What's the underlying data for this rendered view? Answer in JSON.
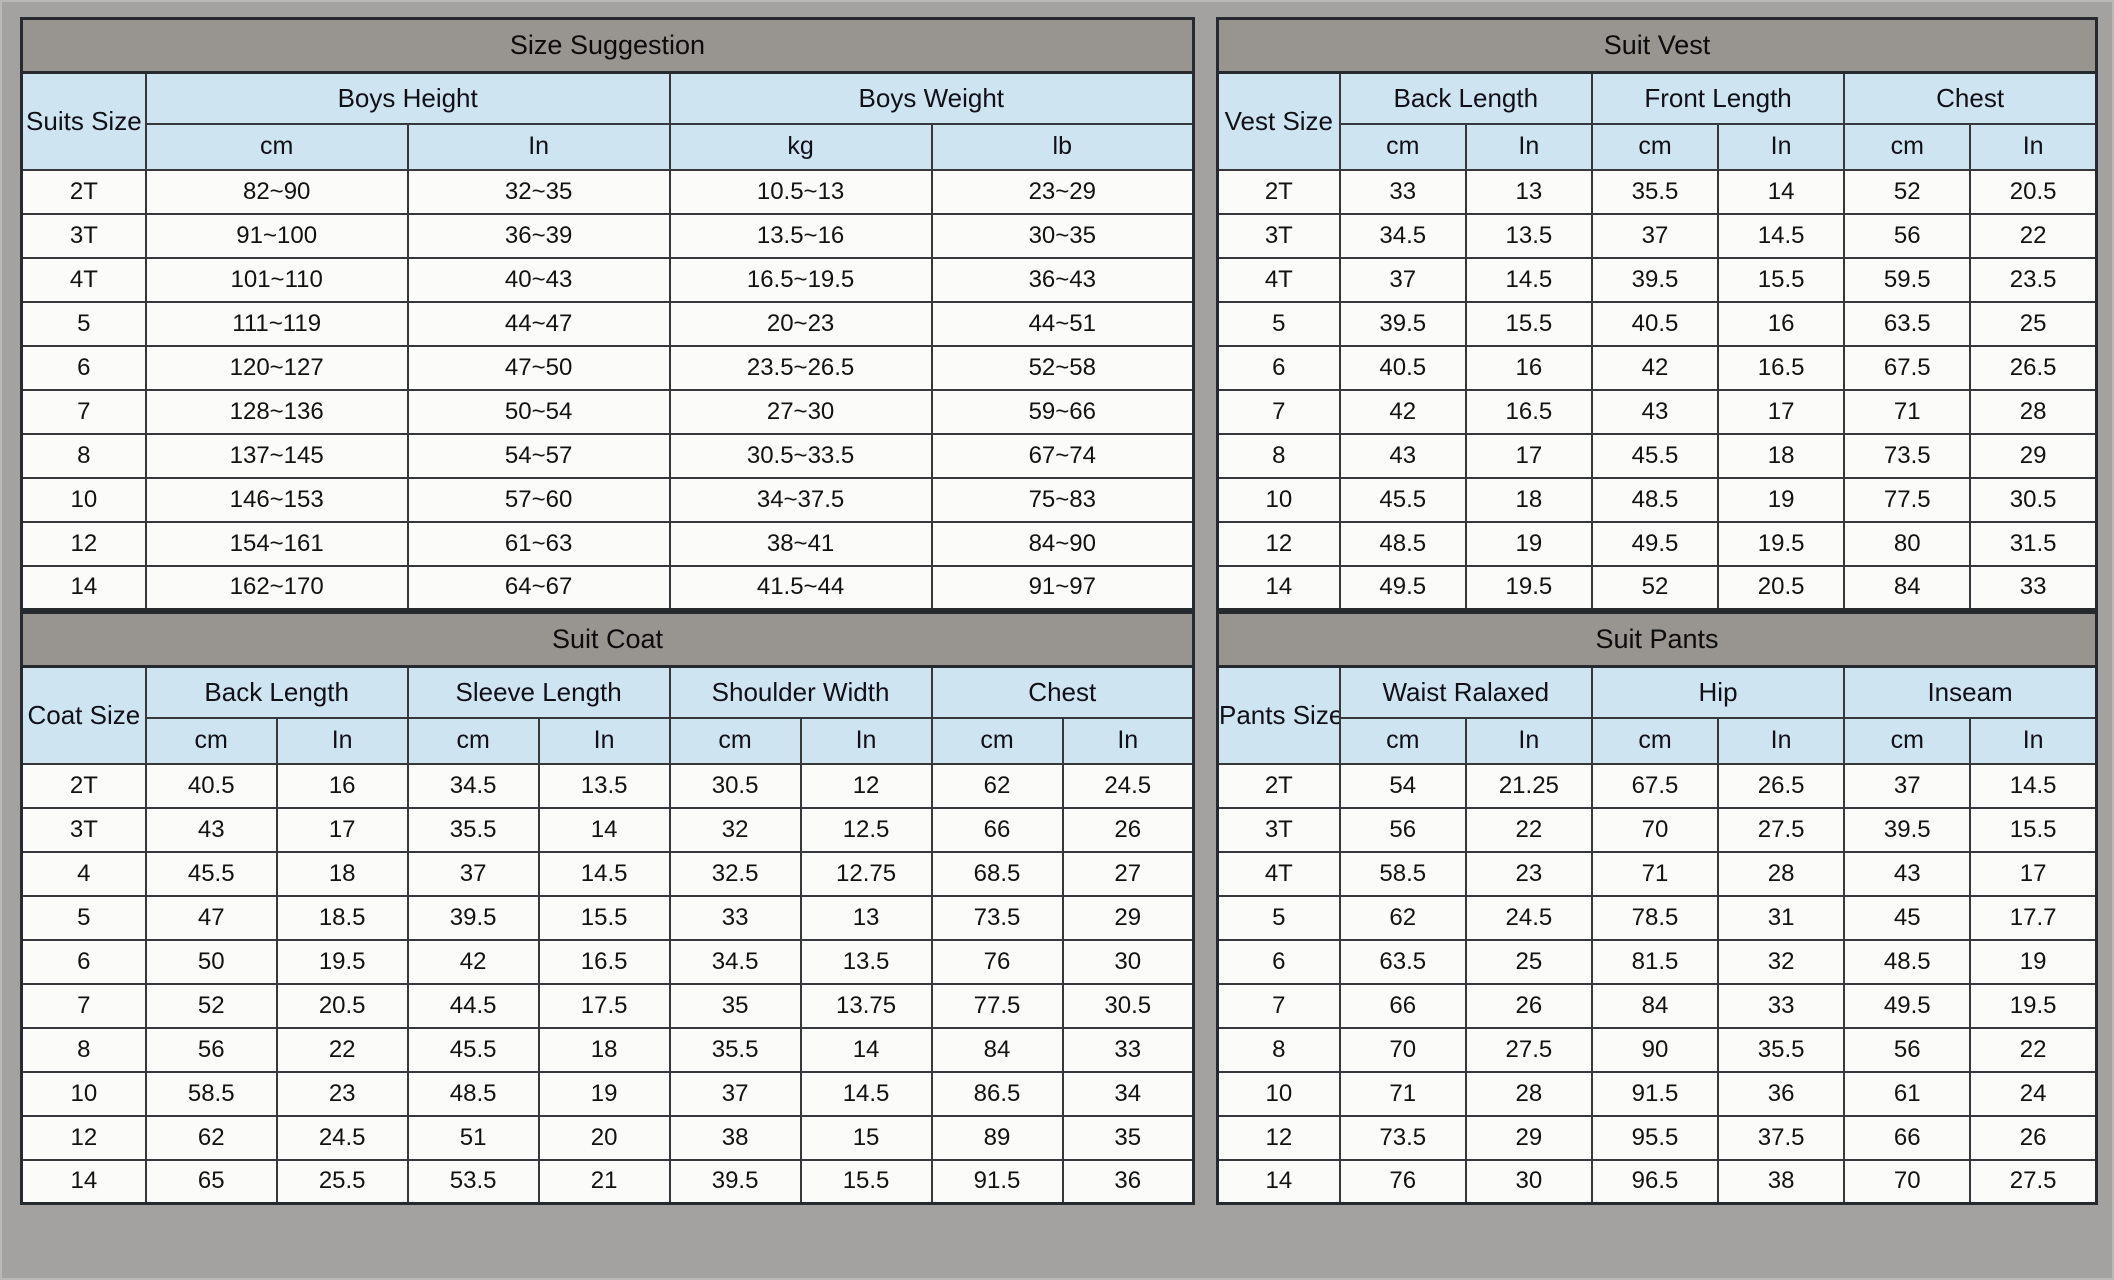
{
  "colors": {
    "board_background": "#a4a2a0",
    "title_bar": "#98948f",
    "header_blue": "#cfe4f1",
    "cell_white": "#fbfbfa",
    "border_dark": "#26292d"
  },
  "tables": [
    {
      "id": "size-suggestion",
      "title": "Size Suggestion",
      "size_column_label": "Suits Size",
      "size_col_width": "10.6%",
      "groups": [
        {
          "label": "Boys Height",
          "units": [
            "cm",
            "In"
          ]
        },
        {
          "label": "Boys Weight",
          "units": [
            "kg",
            "lb"
          ]
        }
      ],
      "rows": [
        {
          "size": "2T",
          "values": [
            "82~90",
            "32~35",
            "10.5~13",
            "23~29"
          ]
        },
        {
          "size": "3T",
          "values": [
            "91~100",
            "36~39",
            "13.5~16",
            "30~35"
          ]
        },
        {
          "size": "4T",
          "values": [
            "101~110",
            "40~43",
            "16.5~19.5",
            "36~43"
          ]
        },
        {
          "size": "5",
          "values": [
            "111~119",
            "44~47",
            "20~23",
            "44~51"
          ]
        },
        {
          "size": "6",
          "values": [
            "120~127",
            "47~50",
            "23.5~26.5",
            "52~58"
          ]
        },
        {
          "size": "7",
          "values": [
            "128~136",
            "50~54",
            "27~30",
            "59~66"
          ]
        },
        {
          "size": "8",
          "values": [
            "137~145",
            "54~57",
            "30.5~33.5",
            "67~74"
          ]
        },
        {
          "size": "10",
          "values": [
            "146~153",
            "57~60",
            "34~37.5",
            "75~83"
          ]
        },
        {
          "size": "12",
          "values": [
            "154~161",
            "61~63",
            "38~41",
            "84~90"
          ]
        },
        {
          "size": "14",
          "values": [
            "162~170",
            "64~67",
            "41.5~44",
            "91~97"
          ]
        }
      ]
    },
    {
      "id": "suit-vest",
      "title": "Suit Vest",
      "size_column_label": "Vest Size",
      "size_col_width": "13.9%",
      "groups": [
        {
          "label": "Back Length",
          "units": [
            "cm",
            "In"
          ]
        },
        {
          "label": "Front Length",
          "units": [
            "cm",
            "In"
          ]
        },
        {
          "label": "Chest",
          "units": [
            "cm",
            "In"
          ]
        }
      ],
      "rows": [
        {
          "size": "2T",
          "values": [
            "33",
            "13",
            "35.5",
            "14",
            "52",
            "20.5"
          ]
        },
        {
          "size": "3T",
          "values": [
            "34.5",
            "13.5",
            "37",
            "14.5",
            "56",
            "22"
          ]
        },
        {
          "size": "4T",
          "values": [
            "37",
            "14.5",
            "39.5",
            "15.5",
            "59.5",
            "23.5"
          ]
        },
        {
          "size": "5",
          "values": [
            "39.5",
            "15.5",
            "40.5",
            "16",
            "63.5",
            "25"
          ]
        },
        {
          "size": "6",
          "values": [
            "40.5",
            "16",
            "42",
            "16.5",
            "67.5",
            "26.5"
          ]
        },
        {
          "size": "7",
          "values": [
            "42",
            "16.5",
            "43",
            "17",
            "71",
            "28"
          ]
        },
        {
          "size": "8",
          "values": [
            "43",
            "17",
            "45.5",
            "18",
            "73.5",
            "29"
          ]
        },
        {
          "size": "10",
          "values": [
            "45.5",
            "18",
            "48.5",
            "19",
            "77.5",
            "30.5"
          ]
        },
        {
          "size": "12",
          "values": [
            "48.5",
            "19",
            "49.5",
            "19.5",
            "80",
            "31.5"
          ]
        },
        {
          "size": "14",
          "values": [
            "49.5",
            "19.5",
            "52",
            "20.5",
            "84",
            "33"
          ]
        }
      ]
    },
    {
      "id": "suit-coat",
      "title": "Suit Coat",
      "size_column_label": "Coat Size",
      "size_col_width": "10.6%",
      "groups": [
        {
          "label": "Back Length",
          "units": [
            "cm",
            "In"
          ]
        },
        {
          "label": "Sleeve Length",
          "units": [
            "cm",
            "In"
          ]
        },
        {
          "label": "Shoulder Width",
          "units": [
            "cm",
            "In"
          ]
        },
        {
          "label": "Chest",
          "units": [
            "cm",
            "In"
          ]
        }
      ],
      "rows": [
        {
          "size": "2T",
          "values": [
            "40.5",
            "16",
            "34.5",
            "13.5",
            "30.5",
            "12",
            "62",
            "24.5"
          ]
        },
        {
          "size": "3T",
          "values": [
            "43",
            "17",
            "35.5",
            "14",
            "32",
            "12.5",
            "66",
            "26"
          ]
        },
        {
          "size": "4",
          "values": [
            "45.5",
            "18",
            "37",
            "14.5",
            "32.5",
            "12.75",
            "68.5",
            "27"
          ]
        },
        {
          "size": "5",
          "values": [
            "47",
            "18.5",
            "39.5",
            "15.5",
            "33",
            "13",
            "73.5",
            "29"
          ]
        },
        {
          "size": "6",
          "values": [
            "50",
            "19.5",
            "42",
            "16.5",
            "34.5",
            "13.5",
            "76",
            "30"
          ]
        },
        {
          "size": "7",
          "values": [
            "52",
            "20.5",
            "44.5",
            "17.5",
            "35",
            "13.75",
            "77.5",
            "30.5"
          ]
        },
        {
          "size": "8",
          "values": [
            "56",
            "22",
            "45.5",
            "18",
            "35.5",
            "14",
            "84",
            "33"
          ]
        },
        {
          "size": "10",
          "values": [
            "58.5",
            "23",
            "48.5",
            "19",
            "37",
            "14.5",
            "86.5",
            "34"
          ]
        },
        {
          "size": "12",
          "values": [
            "62",
            "24.5",
            "51",
            "20",
            "38",
            "15",
            "89",
            "35"
          ]
        },
        {
          "size": "14",
          "values": [
            "65",
            "25.5",
            "53.5",
            "21",
            "39.5",
            "15.5",
            "91.5",
            "36"
          ]
        }
      ]
    },
    {
      "id": "suit-pants",
      "title": "Suit Pants",
      "size_column_label": "Pants Size",
      "size_col_width": "13.9%",
      "groups": [
        {
          "label": "Waist Ralaxed",
          "units": [
            "cm",
            "In"
          ]
        },
        {
          "label": "Hip",
          "units": [
            "cm",
            "In"
          ]
        },
        {
          "label": "Inseam",
          "units": [
            "cm",
            "In"
          ]
        }
      ],
      "rows": [
        {
          "size": "2T",
          "values": [
            "54",
            "21.25",
            "67.5",
            "26.5",
            "37",
            "14.5"
          ]
        },
        {
          "size": "3T",
          "values": [
            "56",
            "22",
            "70",
            "27.5",
            "39.5",
            "15.5"
          ]
        },
        {
          "size": "4T",
          "values": [
            "58.5",
            "23",
            "71",
            "28",
            "43",
            "17"
          ]
        },
        {
          "size": "5",
          "values": [
            "62",
            "24.5",
            "78.5",
            "31",
            "45",
            "17.7"
          ]
        },
        {
          "size": "6",
          "values": [
            "63.5",
            "25",
            "81.5",
            "32",
            "48.5",
            "19"
          ]
        },
        {
          "size": "7",
          "values": [
            "66",
            "26",
            "84",
            "33",
            "49.5",
            "19.5"
          ]
        },
        {
          "size": "8",
          "values": [
            "70",
            "27.5",
            "90",
            "35.5",
            "56",
            "22"
          ]
        },
        {
          "size": "10",
          "values": [
            "71",
            "28",
            "91.5",
            "36",
            "61",
            "24"
          ]
        },
        {
          "size": "12",
          "values": [
            "73.5",
            "29",
            "95.5",
            "37.5",
            "66",
            "26"
          ]
        },
        {
          "size": "14",
          "values": [
            "76",
            "30",
            "96.5",
            "38",
            "70",
            "27.5"
          ]
        }
      ]
    }
  ]
}
